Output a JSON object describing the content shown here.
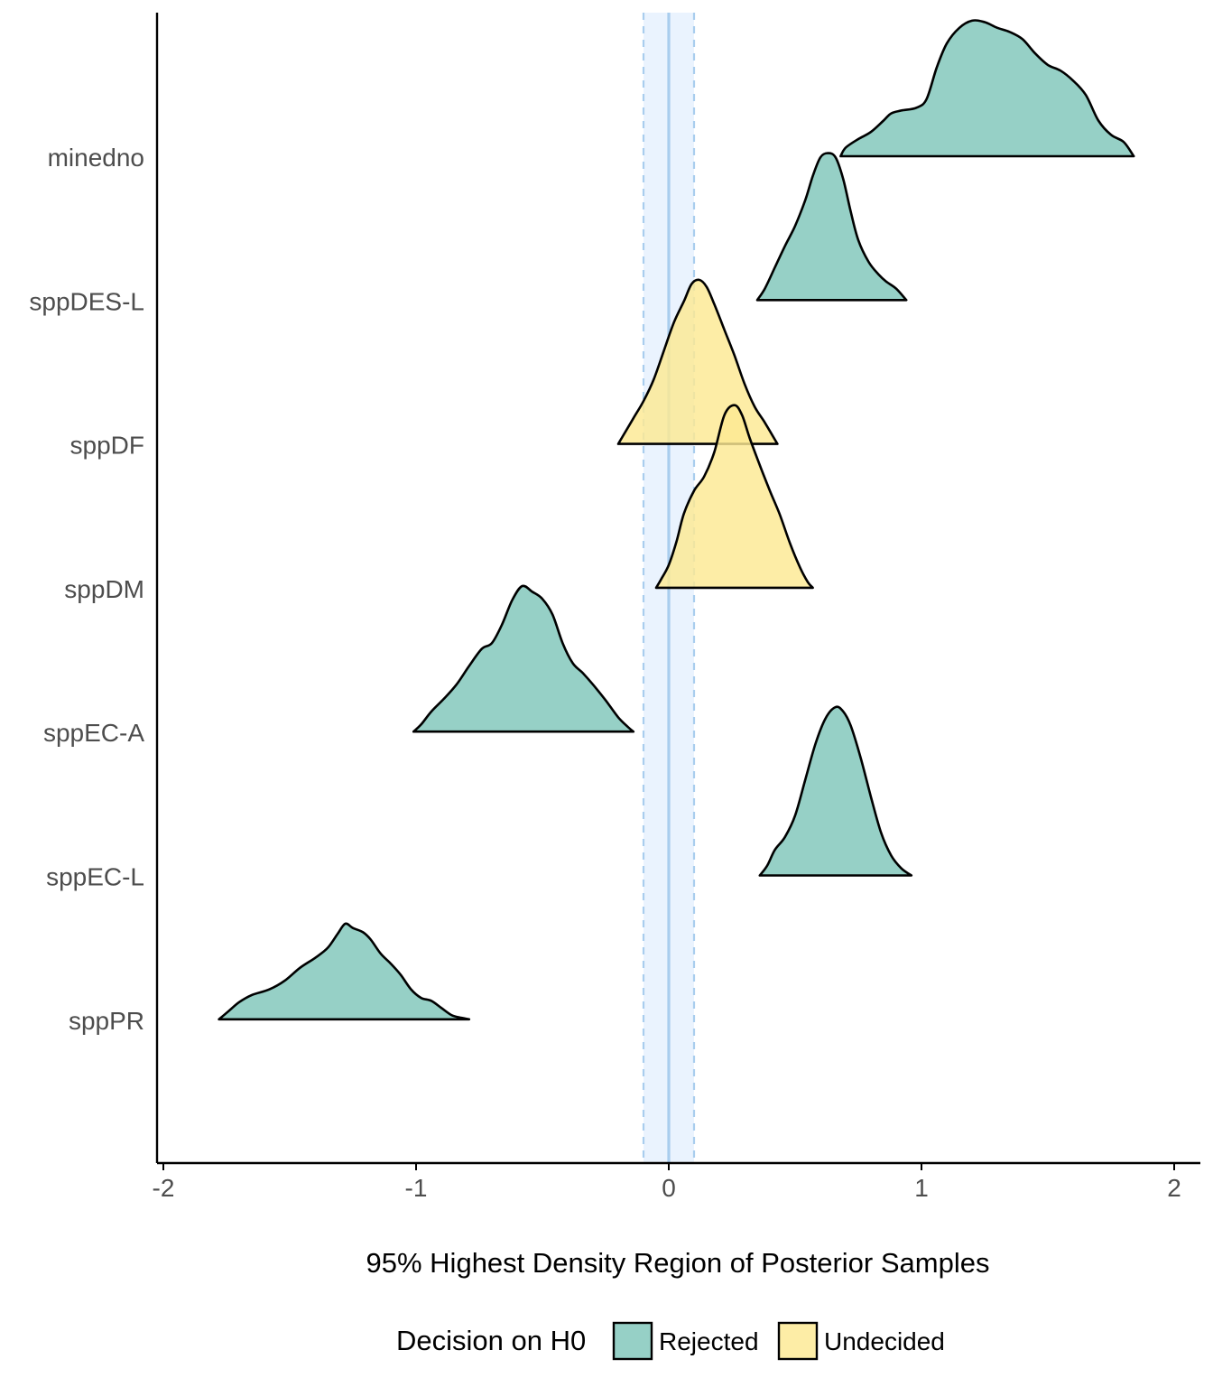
{
  "chart_data": {
    "type": "ridgeline",
    "xlabel": "95% Highest Density Region of Posterior Samples",
    "ylabel": "",
    "xlim": [
      -2,
      2
    ],
    "x_ticks": [
      "-2",
      "-1",
      "0",
      "1",
      "2"
    ],
    "rope": {
      "center": 0,
      "low": -0.1,
      "high": 0.1
    },
    "legend": {
      "title": "Decision on H0",
      "position": "bottom",
      "entries": [
        {
          "label": "Rejected",
          "color": "#7fc6b9"
        },
        {
          "label": "Undecided",
          "color": "#fde992"
        }
      ]
    },
    "colors": {
      "rope_fill": "#eaf3fe",
      "rope_line": "#a9cdee",
      "outline": "#000000"
    },
    "categories": [
      "minedno",
      "sppDES-L",
      "sppDF",
      "sppDM",
      "sppEC-A",
      "sppEC-L",
      "sppPR"
    ],
    "series": [
      {
        "category": "minedno",
        "decision": "Rejected",
        "density": [
          [
            0.68,
            0.0
          ],
          [
            0.7,
            0.06
          ],
          [
            0.75,
            0.12
          ],
          [
            0.8,
            0.17
          ],
          [
            0.85,
            0.25
          ],
          [
            0.88,
            0.3
          ],
          [
            0.92,
            0.32
          ],
          [
            0.98,
            0.34
          ],
          [
            1.02,
            0.4
          ],
          [
            1.06,
            0.62
          ],
          [
            1.1,
            0.79
          ],
          [
            1.15,
            0.9
          ],
          [
            1.2,
            0.95
          ],
          [
            1.25,
            0.94
          ],
          [
            1.3,
            0.9
          ],
          [
            1.35,
            0.87
          ],
          [
            1.4,
            0.82
          ],
          [
            1.45,
            0.72
          ],
          [
            1.5,
            0.64
          ],
          [
            1.55,
            0.6
          ],
          [
            1.6,
            0.53
          ],
          [
            1.65,
            0.43
          ],
          [
            1.7,
            0.25
          ],
          [
            1.75,
            0.15
          ],
          [
            1.8,
            0.1
          ],
          [
            1.84,
            0.0
          ]
        ]
      },
      {
        "category": "sppDES-L",
        "decision": "Rejected",
        "density": [
          [
            0.35,
            0.0
          ],
          [
            0.38,
            0.08
          ],
          [
            0.42,
            0.23
          ],
          [
            0.46,
            0.38
          ],
          [
            0.5,
            0.52
          ],
          [
            0.54,
            0.7
          ],
          [
            0.57,
            0.87
          ],
          [
            0.6,
            1.0
          ],
          [
            0.63,
            1.03
          ],
          [
            0.66,
            1.0
          ],
          [
            0.69,
            0.85
          ],
          [
            0.72,
            0.62
          ],
          [
            0.75,
            0.42
          ],
          [
            0.79,
            0.27
          ],
          [
            0.83,
            0.18
          ],
          [
            0.86,
            0.13
          ],
          [
            0.9,
            0.08
          ],
          [
            0.94,
            0.0
          ]
        ]
      },
      {
        "category": "sppDF",
        "decision": "Undecided",
        "density": [
          [
            -0.2,
            0.0
          ],
          [
            -0.18,
            0.06
          ],
          [
            -0.14,
            0.18
          ],
          [
            -0.1,
            0.3
          ],
          [
            -0.06,
            0.45
          ],
          [
            -0.02,
            0.65
          ],
          [
            0.02,
            0.85
          ],
          [
            0.06,
            1.0
          ],
          [
            0.09,
            1.12
          ],
          [
            0.12,
            1.15
          ],
          [
            0.15,
            1.1
          ],
          [
            0.18,
            0.98
          ],
          [
            0.22,
            0.8
          ],
          [
            0.26,
            0.62
          ],
          [
            0.3,
            0.42
          ],
          [
            0.34,
            0.26
          ],
          [
            0.38,
            0.15
          ],
          [
            0.42,
            0.03
          ],
          [
            0.43,
            0.0
          ]
        ]
      },
      {
        "category": "sppDM",
        "decision": "Undecided",
        "density": [
          [
            -0.05,
            0.0
          ],
          [
            -0.03,
            0.06
          ],
          [
            0.0,
            0.16
          ],
          [
            0.03,
            0.32
          ],
          [
            0.06,
            0.52
          ],
          [
            0.1,
            0.68
          ],
          [
            0.14,
            0.78
          ],
          [
            0.18,
            0.95
          ],
          [
            0.22,
            1.21
          ],
          [
            0.26,
            1.28
          ],
          [
            0.29,
            1.21
          ],
          [
            0.32,
            1.05
          ],
          [
            0.36,
            0.86
          ],
          [
            0.4,
            0.68
          ],
          [
            0.44,
            0.51
          ],
          [
            0.48,
            0.31
          ],
          [
            0.52,
            0.14
          ],
          [
            0.55,
            0.04
          ],
          [
            0.57,
            0.0
          ]
        ]
      },
      {
        "category": "sppEC-A",
        "decision": "Rejected",
        "density": [
          [
            -1.01,
            0.0
          ],
          [
            -0.98,
            0.05
          ],
          [
            -0.94,
            0.14
          ],
          [
            -0.89,
            0.23
          ],
          [
            -0.84,
            0.33
          ],
          [
            -0.79,
            0.46
          ],
          [
            -0.74,
            0.58
          ],
          [
            -0.7,
            0.62
          ],
          [
            -0.66,
            0.75
          ],
          [
            -0.62,
            0.92
          ],
          [
            -0.58,
            1.02
          ],
          [
            -0.54,
            0.98
          ],
          [
            -0.5,
            0.93
          ],
          [
            -0.46,
            0.82
          ],
          [
            -0.42,
            0.62
          ],
          [
            -0.38,
            0.48
          ],
          [
            -0.34,
            0.41
          ],
          [
            -0.3,
            0.33
          ],
          [
            -0.25,
            0.22
          ],
          [
            -0.2,
            0.1
          ],
          [
            -0.16,
            0.03
          ],
          [
            -0.14,
            0.0
          ]
        ]
      },
      {
        "category": "sppEC-L",
        "decision": "Rejected",
        "density": [
          [
            0.36,
            0.0
          ],
          [
            0.39,
            0.07
          ],
          [
            0.42,
            0.18
          ],
          [
            0.46,
            0.27
          ],
          [
            0.5,
            0.42
          ],
          [
            0.54,
            0.67
          ],
          [
            0.58,
            0.92
          ],
          [
            0.62,
            1.1
          ],
          [
            0.66,
            1.18
          ],
          [
            0.69,
            1.15
          ],
          [
            0.72,
            1.05
          ],
          [
            0.76,
            0.82
          ],
          [
            0.8,
            0.55
          ],
          [
            0.84,
            0.3
          ],
          [
            0.88,
            0.14
          ],
          [
            0.92,
            0.05
          ],
          [
            0.96,
            0.0
          ]
        ]
      },
      {
        "category": "sppPR",
        "decision": "Rejected",
        "density": [
          [
            -1.78,
            0.0
          ],
          [
            -1.74,
            0.06
          ],
          [
            -1.7,
            0.12
          ],
          [
            -1.65,
            0.17
          ],
          [
            -1.58,
            0.21
          ],
          [
            -1.52,
            0.27
          ],
          [
            -1.46,
            0.36
          ],
          [
            -1.4,
            0.43
          ],
          [
            -1.35,
            0.5
          ],
          [
            -1.31,
            0.6
          ],
          [
            -1.28,
            0.67
          ],
          [
            -1.25,
            0.64
          ],
          [
            -1.21,
            0.61
          ],
          [
            -1.18,
            0.56
          ],
          [
            -1.14,
            0.46
          ],
          [
            -1.1,
            0.39
          ],
          [
            -1.06,
            0.31
          ],
          [
            -1.02,
            0.21
          ],
          [
            -0.98,
            0.15
          ],
          [
            -0.94,
            0.13
          ],
          [
            -0.9,
            0.08
          ],
          [
            -0.86,
            0.03
          ],
          [
            -0.82,
            0.01
          ],
          [
            -0.79,
            0.0
          ]
        ]
      }
    ]
  }
}
